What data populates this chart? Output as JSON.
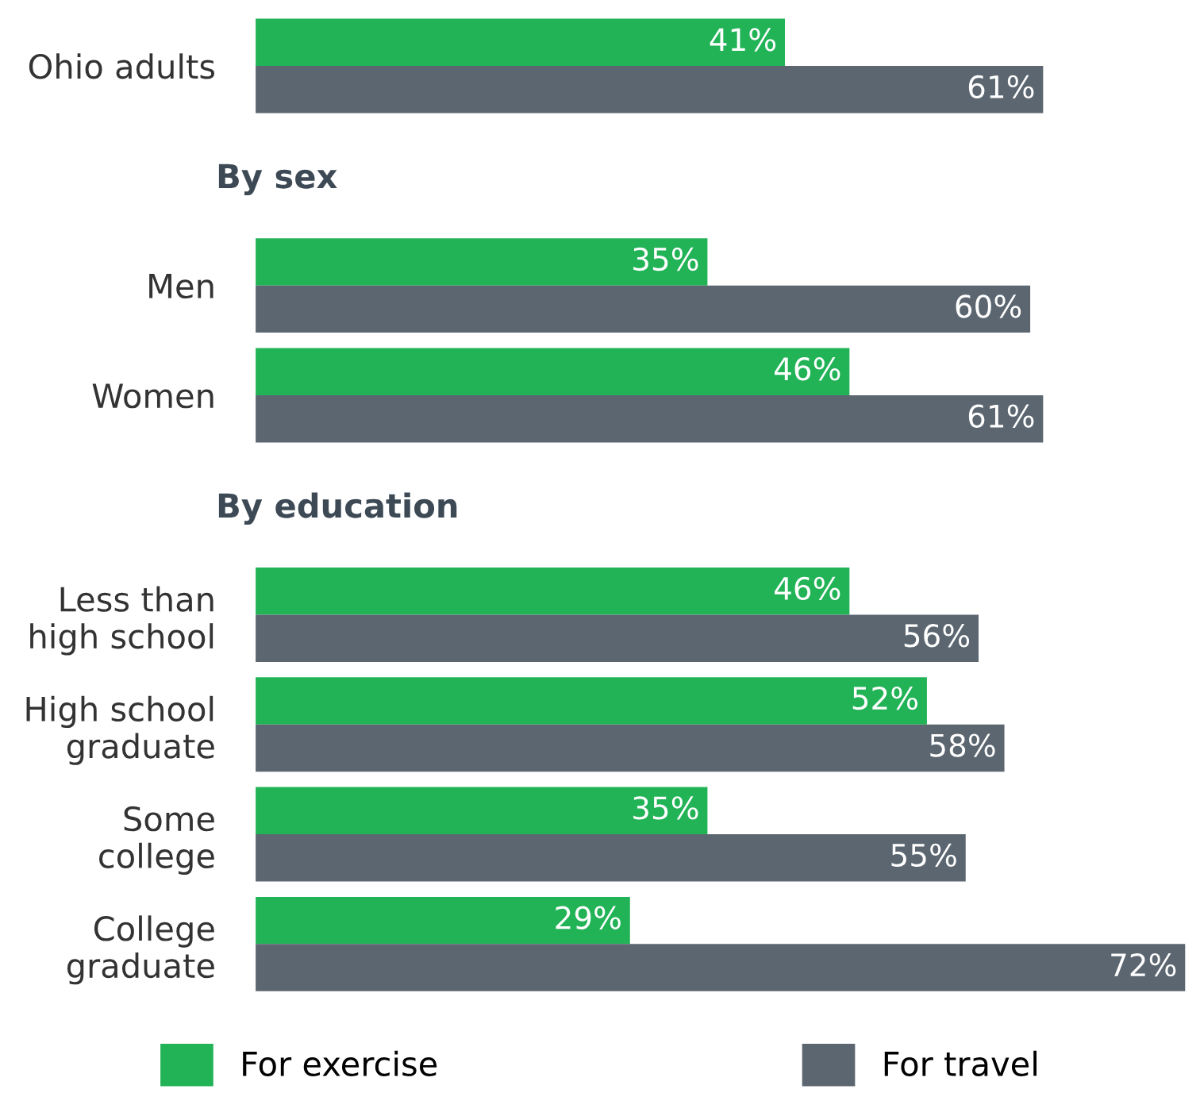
{
  "chart_data": {
    "type": "bar",
    "orientation": "horizontal",
    "categories": [
      "Ohio adults",
      "By sex",
      "Men",
      "Women",
      "By education",
      "Less than\nhigh school",
      "High school\ngraduate",
      "Some\ncollege",
      "College\ngraduate"
    ],
    "series": [
      {
        "name": "For exercise",
        "color": "#22b357",
        "values": [
          41,
          null,
          35,
          46,
          null,
          46,
          52,
          35,
          29
        ],
        "value_labels": [
          "41%",
          null,
          "35%",
          "46%",
          null,
          "46%",
          "52%",
          "35%",
          "29%"
        ]
      },
      {
        "name": "For travel",
        "color": "#5b6670",
        "values": [
          61,
          null,
          60,
          61,
          null,
          56,
          58,
          55,
          72
        ],
        "value_labels": [
          "61%",
          null,
          "60%",
          "61%",
          null,
          "56%",
          "58%",
          "55%",
          "72%"
        ]
      }
    ],
    "xlim": [
      0,
      72.5
    ],
    "tick_labels": "y",
    "grid": false,
    "legend": "bottom"
  }
}
